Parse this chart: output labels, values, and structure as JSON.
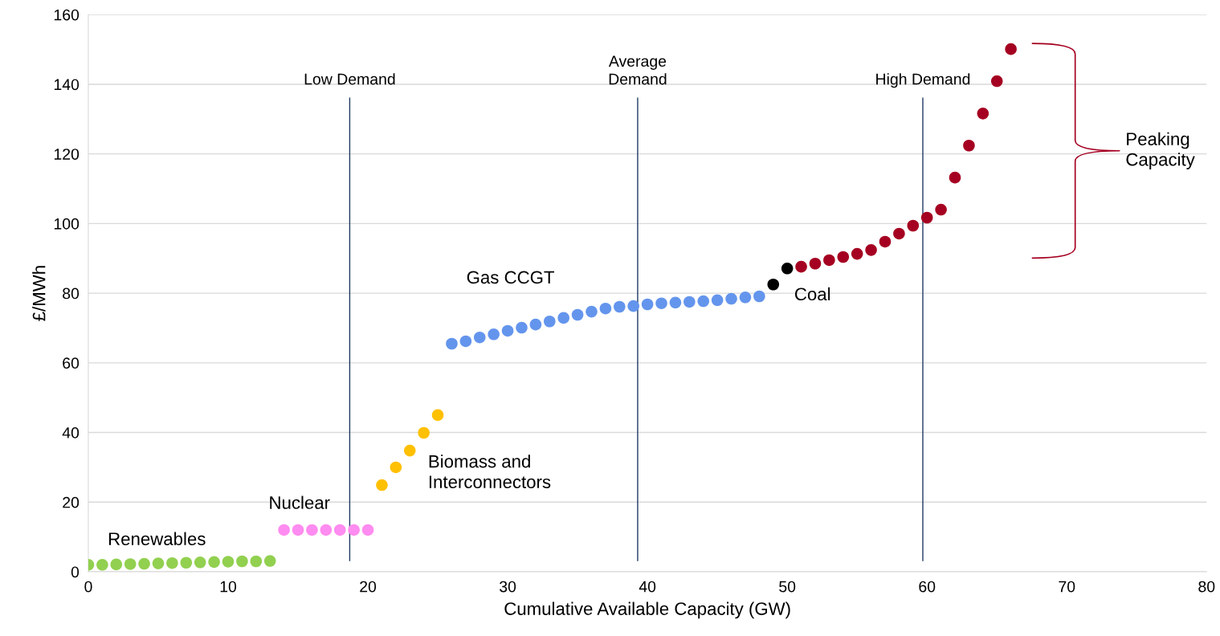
{
  "chart_data": {
    "type": "scatter",
    "xlabel": "Cumulative Available Capacity (GW)",
    "ylabel": "£/MWh",
    "xlim": [
      0,
      80
    ],
    "xticks": [
      0,
      10,
      20,
      30,
      40,
      50,
      60,
      70,
      80
    ],
    "ylim": [
      0,
      160
    ],
    "yticks": [
      0,
      20,
      40,
      60,
      80,
      100,
      120,
      140,
      160
    ],
    "grid": "y",
    "marker": "circle",
    "series": [
      {
        "name": "Renewables",
        "color": "#92d050",
        "x": [
          0,
          1,
          2,
          3,
          4,
          5,
          6,
          7,
          8,
          9,
          10,
          11,
          12,
          13
        ],
        "values": [
          2.0,
          2.0,
          2.1,
          2.2,
          2.3,
          2.4,
          2.5,
          2.6,
          2.7,
          2.8,
          2.9,
          3.0,
          3.0,
          3.1
        ]
      },
      {
        "name": "Nuclear",
        "color": "#ff8cf0",
        "x": [
          14,
          15,
          16,
          17,
          18,
          19,
          20
        ],
        "values": [
          12,
          12,
          12,
          12,
          12,
          12,
          12
        ]
      },
      {
        "name": "Biomass and\nInterconnectors",
        "color": "#ffc000",
        "x": [
          21,
          22,
          23,
          24,
          25
        ],
        "values": [
          24.9,
          30,
          34.8,
          39.9,
          45
        ]
      },
      {
        "name": "Gas CCGT",
        "color": "#6495ed",
        "x": [
          26,
          27,
          28,
          29,
          30,
          31,
          32,
          33,
          34,
          35,
          36,
          37,
          38,
          39,
          40,
          41,
          42,
          43,
          44,
          45,
          46,
          47,
          48
        ],
        "values": [
          65.5,
          66.2,
          67.3,
          68.2,
          69.2,
          70.1,
          71.0,
          71.9,
          72.9,
          73.8,
          74.7,
          75.6,
          76.1,
          76.3,
          76.8,
          77.1,
          77.3,
          77.5,
          77.7,
          78.0,
          78.4,
          78.8,
          79.1
        ]
      },
      {
        "name": "Coal",
        "color": "#000000",
        "x": [
          49,
          50
        ],
        "values": [
          82.5,
          87.1
        ]
      },
      {
        "color": "#a50021",
        "x": [
          51,
          52,
          53,
          54,
          55,
          56,
          57,
          58,
          59,
          60,
          61,
          62,
          63,
          64,
          65,
          66
        ],
        "values": [
          87.6,
          88.5,
          89.5,
          90.4,
          91.3,
          92.4,
          94.8,
          97.1,
          99.4,
          101.7,
          104.0,
          113.2,
          122.4,
          131.6,
          140.9,
          150.1
        ]
      }
    ],
    "annotations": [
      "Peaking\nCapacity"
    ],
    "ref_lines": [
      {
        "axis": "x",
        "value": 18.7,
        "label": "Low Demand",
        "color": "#1f3864"
      },
      {
        "axis": "x",
        "value": 39.3,
        "label": "Average\nDemand",
        "color": "#1f3864"
      },
      {
        "axis": "x",
        "value": 59.7,
        "label": "High Demand",
        "color": "#1f3864"
      }
    ]
  }
}
